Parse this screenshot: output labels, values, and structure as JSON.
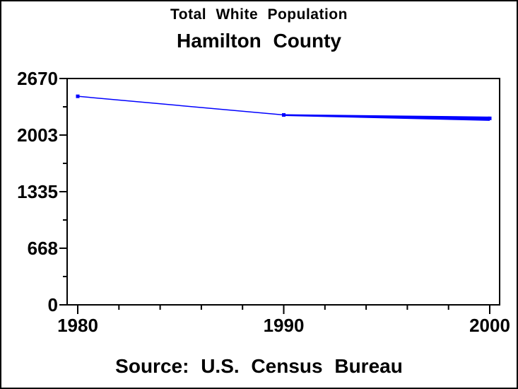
{
  "titles": {
    "line1": "Total White Population",
    "line2": "Hamilton County"
  },
  "footnote": "Source: U.S. Census Bureau",
  "colors": {
    "line": "#0000ff",
    "axis": "#000000",
    "background": "#ffffff",
    "text": "#000000"
  },
  "chart_data": {
    "type": "line",
    "title": "Total White Population",
    "subtitle": "Hamilton County",
    "footnote": "Source: U.S. Census Bureau",
    "x": [
      1980,
      1990,
      2000
    ],
    "series": [
      {
        "name": "Total White Population",
        "color": "#0000ff",
        "values": [
          2460,
          2240,
          2200
        ]
      }
    ],
    "xlabel": "",
    "ylabel": "",
    "xlim": [
      1980,
      2000
    ],
    "ylim": [
      0,
      2670
    ],
    "y_ticks": [
      0,
      668,
      1335,
      2003,
      2670
    ],
    "y_minor_ticks": [
      334,
      1001,
      1669,
      2336
    ],
    "x_ticks": [
      1980,
      1990,
      2000
    ],
    "x_minor_ticks": [
      1982,
      1984,
      1986,
      1988,
      1992,
      1994,
      1996,
      1998
    ],
    "grid": false,
    "frame": true,
    "legend_position": "none",
    "marker": "square",
    "line_thickens_toward_end": true
  }
}
